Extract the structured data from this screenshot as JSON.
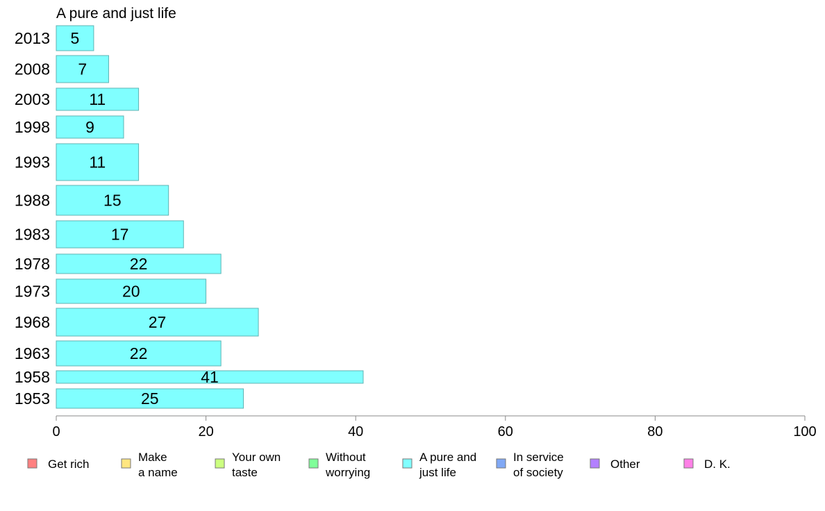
{
  "chart_data": {
    "type": "bar",
    "orientation": "horizontal",
    "title": "A pure and just life",
    "categories": [
      "2013",
      "2008",
      "2003",
      "1998",
      "1993",
      "1988",
      "1983",
      "1978",
      "1973",
      "1968",
      "1963",
      "1958",
      "1953"
    ],
    "values": [
      5,
      7,
      11,
      9,
      11,
      15,
      17,
      22,
      20,
      27,
      22,
      41,
      25
    ],
    "bar_color": "#80FFFF",
    "xlim": [
      0,
      100
    ],
    "xticks": [
      0,
      20,
      40,
      60,
      80,
      100
    ],
    "legend": {
      "placement": "bottom",
      "entries": [
        {
          "label": [
            "Get rich"
          ],
          "color": "#FF8080"
        },
        {
          "label": [
            "Make",
            "a name"
          ],
          "color": "#FFE680"
        },
        {
          "label": [
            "Your own",
            "taste"
          ],
          "color": "#CCFF80"
        },
        {
          "label": [
            "Without",
            "worrying"
          ],
          "color": "#80FF99"
        },
        {
          "label": [
            "A pure and",
            "just life"
          ],
          "color": "#80FFFF"
        },
        {
          "label": [
            "In service",
            "of society"
          ],
          "color": "#80A8F5"
        },
        {
          "label": [
            "Other"
          ],
          "color": "#B380FF"
        },
        {
          "label": [
            "D. K."
          ],
          "color": "#FF80E6"
        }
      ]
    }
  }
}
